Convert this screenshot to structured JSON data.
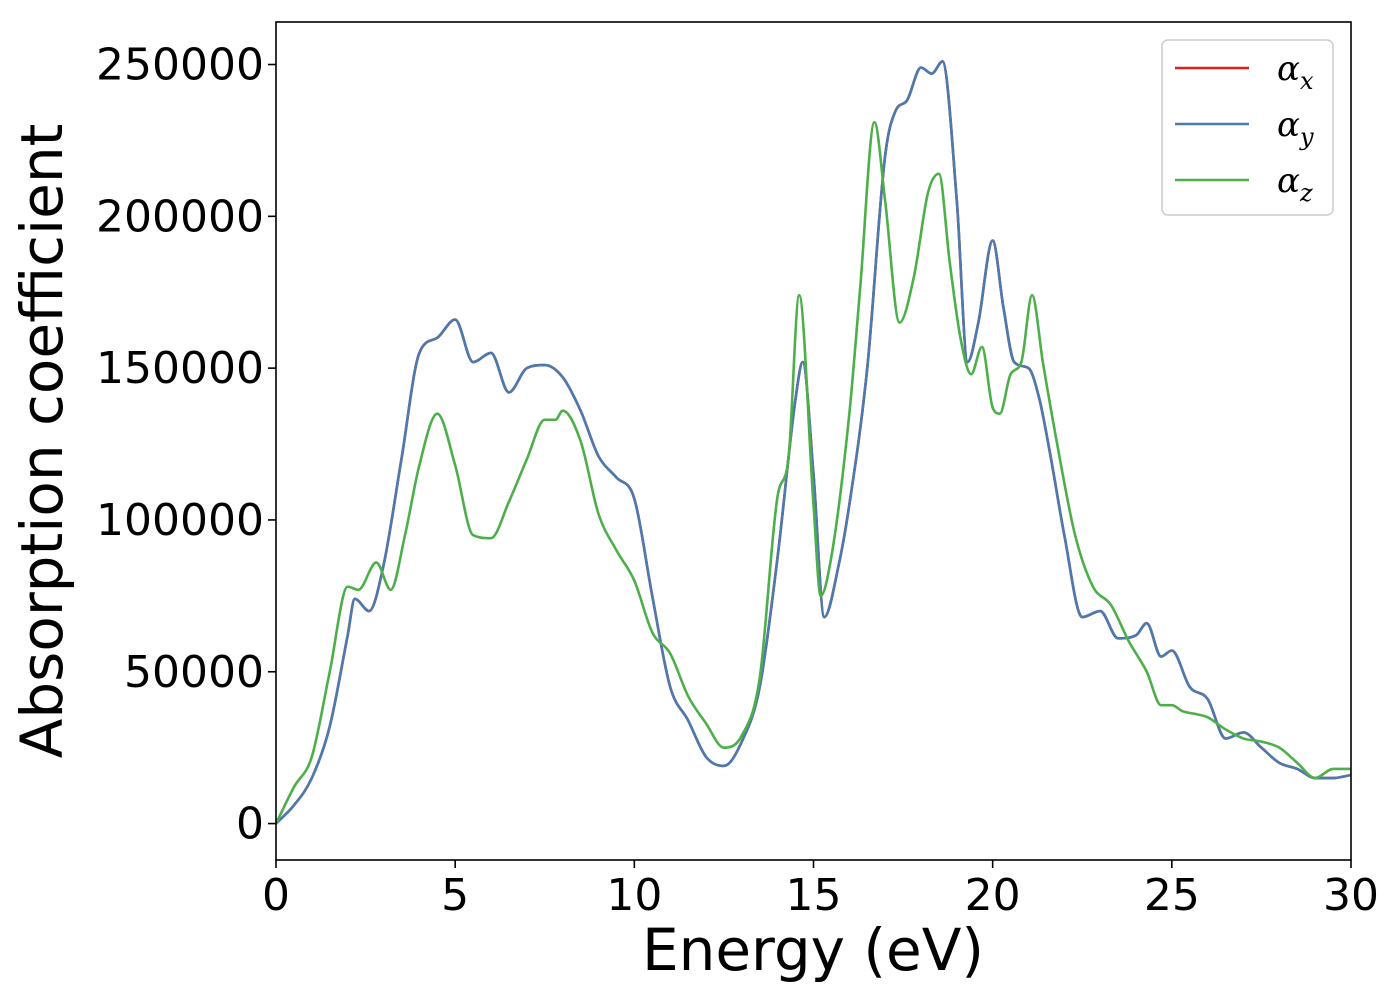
{
  "chart_data": {
    "type": "line",
    "title": "",
    "xlabel": "Energy (eV)",
    "ylabel": "Absorption coefficient",
    "xlim": [
      0,
      30
    ],
    "ylim": [
      -12000,
      264000
    ],
    "xticks": [
      0,
      5,
      10,
      15,
      20,
      25,
      30
    ],
    "xtick_labels": [
      "0",
      "5",
      "10",
      "15",
      "20",
      "25",
      "30"
    ],
    "yticks": [
      0,
      50000,
      100000,
      150000,
      200000,
      250000
    ],
    "ytick_labels": [
      "0",
      "50000",
      "100000",
      "150000",
      "200000",
      "250000"
    ],
    "grid": false,
    "legend_position": "top-right",
    "legend": [
      {
        "symbol": "α",
        "sub": "x",
        "color": "#e41a1c"
      },
      {
        "symbol": "α",
        "sub": "y",
        "color": "#4a7bb0"
      },
      {
        "symbol": "α",
        "sub": "z",
        "color": "#4daf4a"
      }
    ],
    "series": [
      {
        "name": "αx",
        "color": "#e41a1c",
        "x": [
          0,
          0.5,
          1,
          1.5,
          2,
          2.2,
          2.6,
          3,
          3.5,
          4,
          4.5,
          5,
          5.5,
          6,
          6.5,
          7,
          7.5,
          8,
          8.5,
          9,
          9.5,
          10,
          10.5,
          11,
          11.5,
          12,
          12.5,
          13,
          13.5,
          14,
          14.5,
          14.7,
          15,
          15.3,
          15.7,
          16,
          16.5,
          17,
          17.3,
          17.6,
          18,
          18.3,
          18.6,
          19,
          19.3,
          19.6,
          20,
          20.3,
          20.6,
          21,
          21.3,
          21.6,
          22,
          22.5,
          23,
          23.5,
          24,
          24.3,
          24.7,
          25,
          25.5,
          26,
          26.5,
          27,
          27.5,
          28,
          28.5,
          29,
          29.5,
          30
        ],
        "y": [
          0,
          6000,
          15000,
          32000,
          62000,
          74000,
          70000,
          85000,
          120000,
          155000,
          160000,
          166000,
          152000,
          155000,
          142000,
          150000,
          151000,
          147000,
          136000,
          121000,
          114000,
          107000,
          75000,
          45000,
          34000,
          22000,
          19000,
          27000,
          45000,
          88000,
          140000,
          152000,
          115000,
          68000,
          85000,
          105000,
          150000,
          220000,
          235000,
          238000,
          249000,
          247000,
          251000,
          205000,
          152000,
          165000,
          192000,
          170000,
          152000,
          150000,
          140000,
          122000,
          95000,
          68000,
          70000,
          61000,
          62000,
          66000,
          55000,
          57000,
          45000,
          41000,
          28000,
          30000,
          25000,
          20000,
          18000,
          15000,
          15000,
          16000
        ]
      },
      {
        "name": "αy",
        "color": "#4a7bb0",
        "x": [
          0,
          0.5,
          1,
          1.5,
          2,
          2.2,
          2.6,
          3,
          3.5,
          4,
          4.5,
          5,
          5.5,
          6,
          6.5,
          7,
          7.5,
          8,
          8.5,
          9,
          9.5,
          10,
          10.5,
          11,
          11.5,
          12,
          12.5,
          13,
          13.5,
          14,
          14.5,
          14.7,
          15,
          15.3,
          15.7,
          16,
          16.5,
          17,
          17.3,
          17.6,
          18,
          18.3,
          18.6,
          19,
          19.3,
          19.6,
          20,
          20.3,
          20.6,
          21,
          21.3,
          21.6,
          22,
          22.5,
          23,
          23.5,
          24,
          24.3,
          24.7,
          25,
          25.5,
          26,
          26.5,
          27,
          27.5,
          28,
          28.5,
          29,
          29.5,
          30
        ],
        "y": [
          0,
          6000,
          15000,
          32000,
          62000,
          74000,
          70000,
          85000,
          120000,
          155000,
          160000,
          166000,
          152000,
          155000,
          142000,
          150000,
          151000,
          147000,
          136000,
          121000,
          114000,
          107000,
          75000,
          45000,
          34000,
          22000,
          19000,
          27000,
          45000,
          88000,
          140000,
          152000,
          115000,
          68000,
          85000,
          105000,
          150000,
          220000,
          235000,
          238000,
          249000,
          247000,
          251000,
          205000,
          152000,
          165000,
          192000,
          170000,
          152000,
          150000,
          140000,
          122000,
          95000,
          68000,
          70000,
          61000,
          62000,
          66000,
          55000,
          57000,
          45000,
          41000,
          28000,
          30000,
          25000,
          20000,
          18000,
          15000,
          15000,
          16000
        ]
      },
      {
        "name": "αz",
        "color": "#4daf4a",
        "x": [
          0,
          0.5,
          1,
          1.5,
          2,
          2.3,
          2.8,
          3.2,
          3.6,
          4,
          4.5,
          5,
          5.5,
          6,
          6.5,
          7,
          7.5,
          7.8,
          8,
          8.5,
          9,
          9.5,
          10,
          10.5,
          11,
          11.5,
          12,
          12.5,
          13,
          13.5,
          14,
          14.3,
          14.6,
          15,
          15.2,
          15.5,
          16,
          16.3,
          16.7,
          17,
          17.4,
          17.8,
          18.2,
          18.5,
          18.8,
          19.1,
          19.4,
          19.7,
          20,
          20.2,
          20.5,
          20.8,
          21.1,
          21.4,
          21.8,
          22.3,
          22.8,
          23.3,
          23.8,
          24.3,
          24.7,
          25,
          25.3,
          25.7,
          26,
          26.5,
          27,
          27.5,
          28,
          28.5,
          29,
          29.5,
          30
        ],
        "y": [
          0,
          12000,
          22000,
          50000,
          78000,
          77000,
          86000,
          77000,
          95000,
          118000,
          135000,
          118000,
          95000,
          94000,
          106000,
          120000,
          133000,
          133000,
          136000,
          126000,
          102000,
          90000,
          80000,
          63000,
          56000,
          42000,
          33000,
          25000,
          29000,
          48000,
          108000,
          120000,
          174000,
          105000,
          75000,
          88000,
          135000,
          176000,
          231000,
          205000,
          165000,
          180000,
          208000,
          214000,
          185000,
          160000,
          148000,
          157000,
          137000,
          135000,
          148000,
          152000,
          174000,
          152000,
          125000,
          95000,
          78000,
          72000,
          60000,
          50000,
          39000,
          39000,
          37000,
          36000,
          35000,
          31000,
          28000,
          27000,
          25000,
          20000,
          15000,
          18000,
          18000
        ]
      }
    ]
  }
}
